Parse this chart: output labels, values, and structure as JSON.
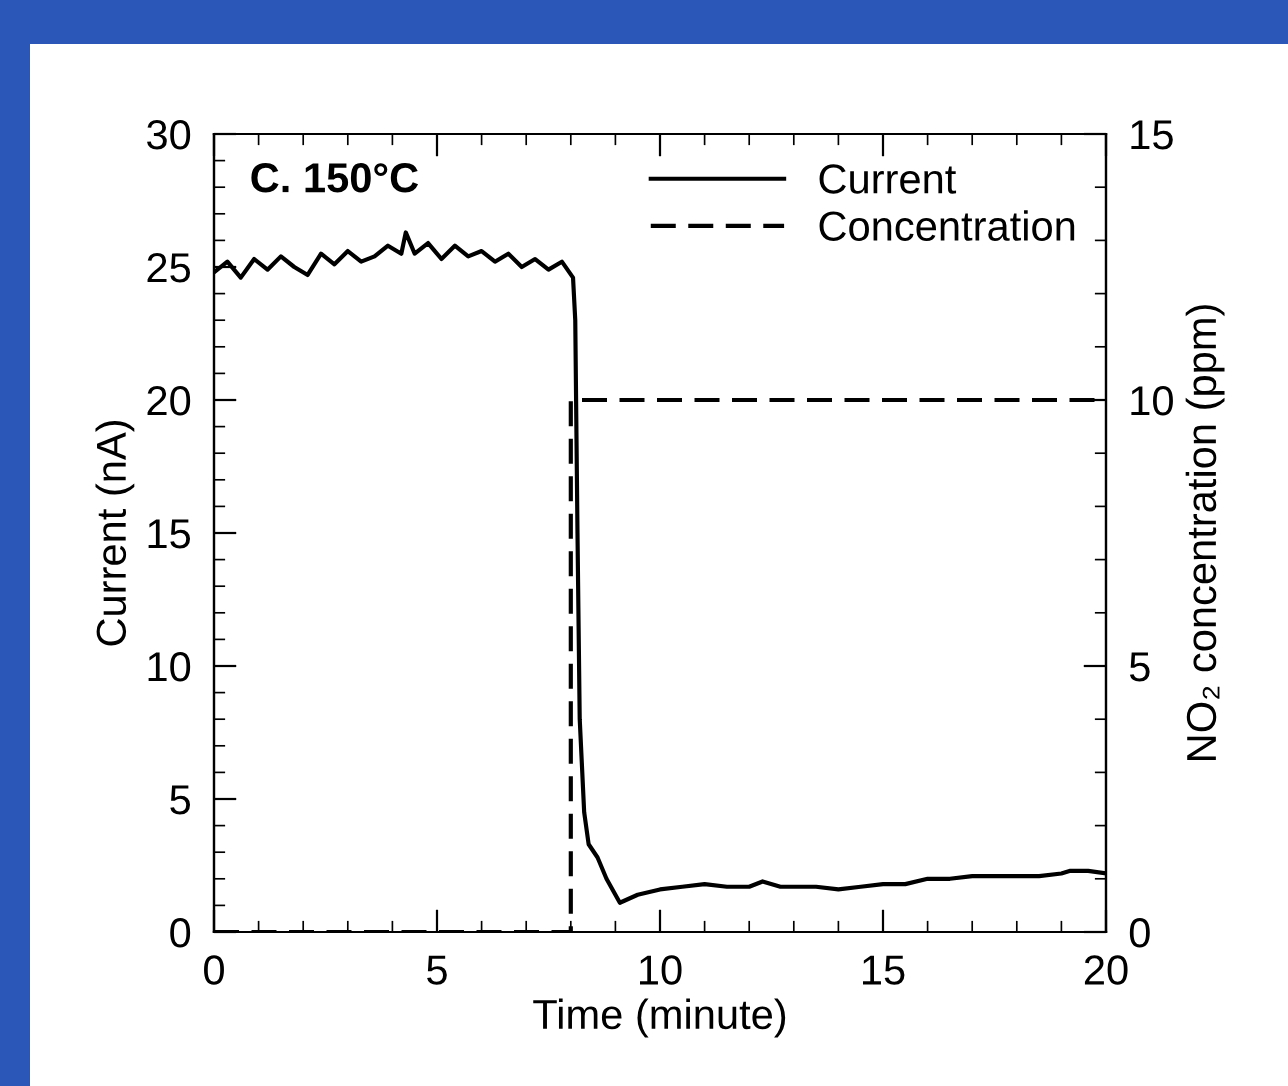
{
  "chart_data": {
    "type": "line",
    "annotations": [
      "C. 150°C"
    ],
    "xlabel": "Time (minute)",
    "ylabel": "Current (nA)",
    "y2label": "NO₂ concentration (ppm)",
    "xlim": [
      0,
      20
    ],
    "xticks": [
      0,
      5,
      10,
      15,
      20,
      {
        "value": 1,
        "label": null
      },
      {
        "value": 2,
        "label": null
      },
      {
        "value": 3,
        "label": null
      },
      {
        "value": 4,
        "label": null
      },
      {
        "value": 6,
        "label": null
      },
      {
        "value": 7,
        "label": null
      },
      {
        "value": 8,
        "label": null
      },
      {
        "value": 9,
        "label": null
      },
      {
        "value": 11,
        "label": null
      },
      {
        "value": 12,
        "label": null
      },
      {
        "value": 13,
        "label": null
      },
      {
        "value": 14,
        "label": null
      },
      {
        "value": 16,
        "label": null
      },
      {
        "value": 17,
        "label": null
      },
      {
        "value": 18,
        "label": null
      },
      {
        "value": 19,
        "label": null
      }
    ],
    "ylim": [
      0,
      30
    ],
    "yticks": [
      0,
      5,
      10,
      15,
      20,
      25,
      30,
      {
        "value": 1,
        "label": null
      },
      {
        "value": 2,
        "label": null
      },
      {
        "value": 3,
        "label": null
      },
      {
        "value": 4,
        "label": null
      },
      {
        "value": 6,
        "label": null
      },
      {
        "value": 7,
        "label": null
      },
      {
        "value": 8,
        "label": null
      },
      {
        "value": 9,
        "label": null
      },
      {
        "value": 11,
        "label": null
      },
      {
        "value": 12,
        "label": null
      },
      {
        "value": 13,
        "label": null
      },
      {
        "value": 14,
        "label": null
      },
      {
        "value": 16,
        "label": null
      },
      {
        "value": 17,
        "label": null
      },
      {
        "value": 18,
        "label": null
      },
      {
        "value": 19,
        "label": null
      },
      {
        "value": 21,
        "label": null
      },
      {
        "value": 22,
        "label": null
      },
      {
        "value": 23,
        "label": null
      },
      {
        "value": 24,
        "label": null
      },
      {
        "value": 26,
        "label": null
      },
      {
        "value": 27,
        "label": null
      },
      {
        "value": 28,
        "label": null
      },
      {
        "value": 29,
        "label": null
      }
    ],
    "y2lim": [
      0,
      15
    ],
    "y2ticks": [
      0,
      5,
      10,
      15,
      {
        "value": 1,
        "label": null
      },
      {
        "value": 2,
        "label": null
      },
      {
        "value": 3,
        "label": null
      },
      {
        "value": 4,
        "label": null
      },
      {
        "value": 6,
        "label": null
      },
      {
        "value": 7,
        "label": null
      },
      {
        "value": 8,
        "label": null
      },
      {
        "value": 9,
        "label": null
      },
      {
        "value": 11,
        "label": null
      },
      {
        "value": 12,
        "label": null
      },
      {
        "value": 13,
        "label": null
      },
      {
        "value": 14,
        "label": null
      }
    ],
    "legend": "top right",
    "grid": false,
    "series": [
      {
        "name": "Current",
        "color": "#000000",
        "line_style": "solid",
        "x": [
          0,
          0.3,
          0.6,
          0.9,
          1.2,
          1.5,
          1.8,
          2.1,
          2.4,
          2.7,
          3.0,
          3.3,
          3.6,
          3.9,
          4.2,
          4.3,
          4.5,
          4.8,
          5.1,
          5.4,
          5.7,
          6.0,
          6.3,
          6.6,
          6.9,
          7.2,
          7.5,
          7.8,
          8.05,
          8.1,
          8.15,
          8.2,
          8.3,
          8.4,
          8.6,
          8.8,
          9.1,
          9.5,
          10,
          10.5,
          11,
          11.5,
          12,
          12.3,
          12.7,
          13,
          13.5,
          14,
          14.5,
          15,
          15.5,
          16,
          16.5,
          17,
          17.5,
          18,
          18.5,
          19,
          19.2,
          19.6,
          20
        ],
        "values": [
          24.8,
          25.2,
          24.6,
          25.3,
          24.9,
          25.4,
          25.0,
          24.7,
          25.5,
          25.1,
          25.6,
          25.2,
          25.4,
          25.8,
          25.5,
          26.3,
          25.5,
          25.9,
          25.3,
          25.8,
          25.4,
          25.6,
          25.2,
          25.5,
          25.0,
          25.3,
          24.9,
          25.2,
          24.6,
          23.0,
          15.0,
          8.0,
          4.5,
          3.3,
          2.8,
          2.0,
          1.1,
          1.4,
          1.6,
          1.7,
          1.8,
          1.7,
          1.7,
          1.9,
          1.7,
          1.7,
          1.7,
          1.6,
          1.7,
          1.8,
          1.8,
          2.0,
          2.0,
          2.1,
          2.1,
          2.1,
          2.1,
          2.2,
          2.3,
          2.3,
          2.2
        ]
      },
      {
        "name": "Concentration",
        "color": "#000000",
        "line_style": "dashed",
        "axis": "y2",
        "x": [
          0,
          8,
          8,
          20
        ],
        "values": [
          0,
          0,
          10,
          10
        ]
      }
    ]
  }
}
